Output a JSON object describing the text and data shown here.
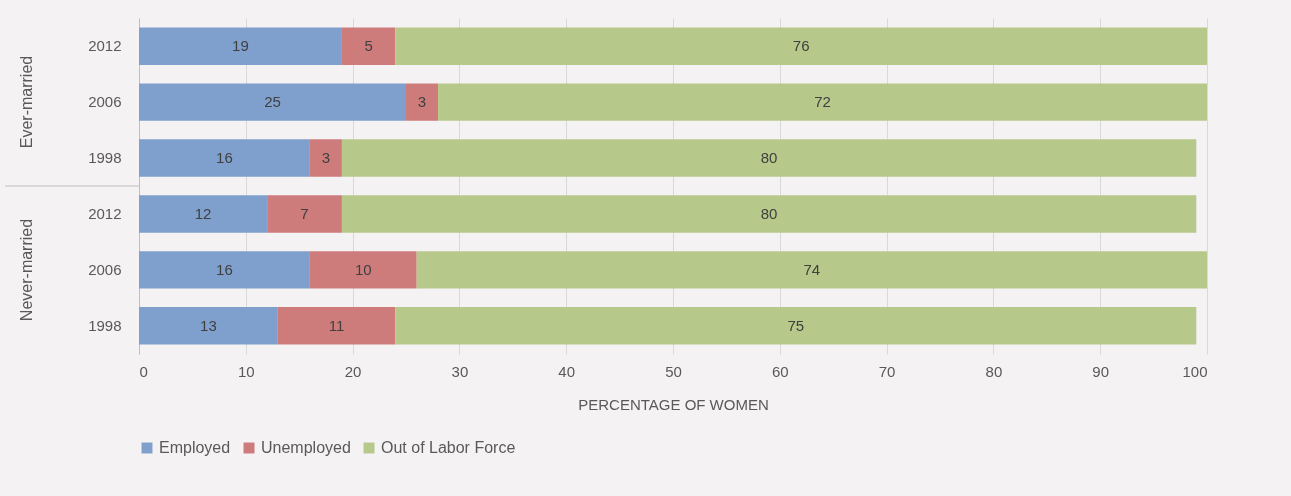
{
  "chart_data": {
    "type": "bar",
    "orientation": "horizontal",
    "stacked": true,
    "categories": [
      "2012",
      "2006",
      "1998",
      "2012",
      "2006",
      "1998"
    ],
    "series": [
      {
        "name": "Employed",
        "color": "#7f9fcc",
        "values": [
          19,
          25,
          16,
          12,
          16,
          13
        ]
      },
      {
        "name": "Unemployed",
        "color": "#cd7b7b",
        "values": [
          5,
          3,
          3,
          7,
          10,
          11
        ]
      },
      {
        "name": "Out of Labor Force",
        "color": "#b6c98a",
        "values": [
          76,
          72,
          80,
          80,
          74,
          75
        ]
      }
    ],
    "xlabel": "PERCENTAGE OF WOMEN",
    "xlim": [
      0,
      100
    ],
    "xticks": [
      0,
      10,
      20,
      30,
      40,
      50,
      60,
      70,
      80,
      90,
      100
    ],
    "annotations": [
      "Ever-married",
      "Never-married"
    ],
    "data_labels": true,
    "grid": "x",
    "legend": "bottom"
  }
}
